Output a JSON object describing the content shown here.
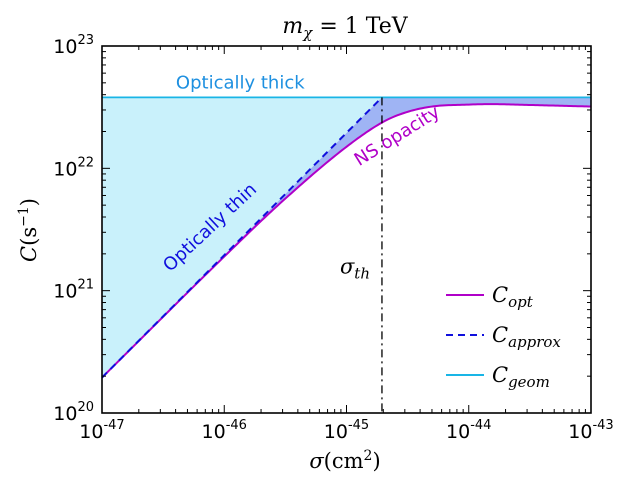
{
  "chart_data": {
    "type": "line",
    "title": "m_χ = 1 TeV",
    "title_italic": "m",
    "title_sub": "χ",
    "title_rest": " = 1 TeV",
    "xlabel": "σ(cm²)",
    "xlabel_parts": {
      "sym": "σ",
      "open": "(cm",
      "sup": "2",
      "close": ")"
    },
    "ylabel": "C(s⁻¹)",
    "ylabel_parts": {
      "sym": "C",
      "open": "(s",
      "sup": "−1",
      "close": ")"
    },
    "xscale": "log",
    "yscale": "log",
    "xlim": [
      1e-47,
      1e-43
    ],
    "ylim": [
      1e+20,
      1e+23
    ],
    "x_ticks": [
      {
        "value": 1e-47,
        "base": "10",
        "exp": "-47"
      },
      {
        "value": 1e-46,
        "base": "10",
        "exp": "-46"
      },
      {
        "value": 1e-45,
        "base": "10",
        "exp": "-45"
      },
      {
        "value": 1e-44,
        "base": "10",
        "exp": "-44"
      },
      {
        "value": 1e-43,
        "base": "10",
        "exp": "-43"
      }
    ],
    "y_ticks": [
      {
        "value": 1e+20,
        "base": "10",
        "exp": "20"
      },
      {
        "value": 1e+21,
        "base": "10",
        "exp": "21"
      },
      {
        "value": 1e+22,
        "base": "10",
        "exp": "22"
      },
      {
        "value": 1e+23,
        "base": "10",
        "exp": "23"
      }
    ],
    "series": [
      {
        "name": "C_opt",
        "label_main": "C",
        "label_sub": "opt",
        "color": "#b000c8",
        "dash": "solid",
        "x": [
          1e-47,
          1e-46,
          3e-46,
          1e-45,
          2e-45,
          3e-45,
          5e-45,
          1e-44,
          1.5e-44,
          3e-44,
          1e-43
        ],
        "y": [
          1.95e+20,
          1.9e+21,
          5.4e+21,
          1.5e+22,
          2.4e+22,
          2.85e+22,
          3.2e+22,
          3.32e+22,
          3.35e+22,
          3.3e+22,
          3.2e+22
        ]
      },
      {
        "name": "C_approx",
        "label_main": "C",
        "label_sub": "approx",
        "color": "#1010dd",
        "dash": "dashed",
        "x": [
          1e-47,
          1e-46,
          1e-45,
          1.95e-45
        ],
        "y": [
          1.95e+20,
          1.95e+21,
          1.95e+22,
          3.8e+22
        ]
      },
      {
        "name": "C_geom",
        "label_main": "C",
        "label_sub": "geom",
        "color": "#19b5e6",
        "dash": "solid",
        "x": [
          1e-47,
          1e-43
        ],
        "y": [
          3.8e+22,
          3.8e+22
        ]
      }
    ],
    "threshold": {
      "x": 1.95e-45,
      "label_main": "σ",
      "label_sub": "th",
      "color": "#000000"
    },
    "annotations": {
      "optically_thick": {
        "text": "Optically thick",
        "color": "#1e90e0"
      },
      "optically_thin": {
        "text": "Optically thin",
        "color": "#1010dd"
      },
      "ns_opacity": {
        "text": "NS opacity",
        "color": "#b000c8"
      }
    },
    "fill_colors": {
      "thin_region": "#c9f1fb",
      "opacity_region": "#9fb4f4"
    },
    "legend_position": "lower right",
    "grid": false
  }
}
